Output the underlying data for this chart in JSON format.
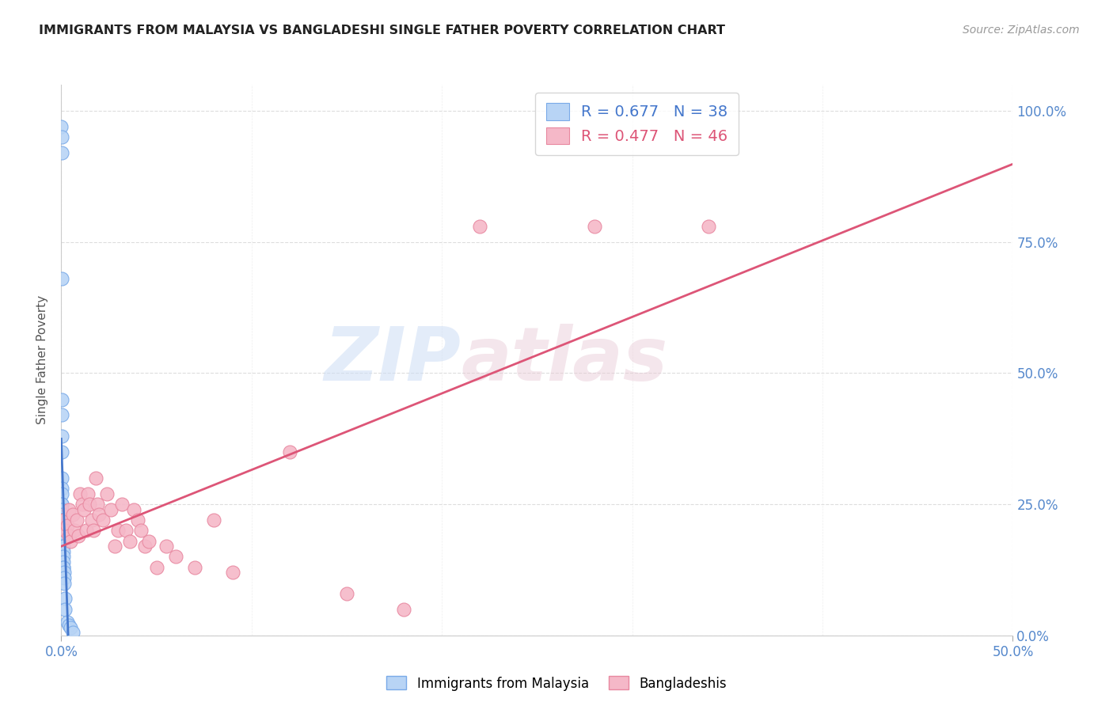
{
  "title": "IMMIGRANTS FROM MALAYSIA VS BANGLADESHI SINGLE FATHER POVERTY CORRELATION CHART",
  "source": "Source: ZipAtlas.com",
  "ylabel": "Single Father Poverty",
  "right_yticklabels": [
    "0.0%",
    "25.0%",
    "50.0%",
    "75.0%",
    "100.0%"
  ],
  "right_yticks": [
    0.0,
    0.25,
    0.5,
    0.75,
    1.0
  ],
  "watermark_text": "ZIP",
  "watermark_text2": "atlas",
  "legend_entry1": "R = 0.677   N = 38",
  "legend_entry2": "R = 0.477   N = 46",
  "legend_label1": "Immigrants from Malaysia",
  "legend_label2": "Bangladeshis",
  "color_blue": "#b8d4f5",
  "color_pink": "#f5b8c8",
  "color_blue_line": "#4477cc",
  "color_pink_line": "#dd5577",
  "blue_scatter_x": [
    0.0,
    0.0001,
    0.0001,
    0.0001,
    0.0001,
    0.0002,
    0.0002,
    0.0002,
    0.0002,
    0.0003,
    0.0003,
    0.0003,
    0.0004,
    0.0004,
    0.0005,
    0.0005,
    0.0006,
    0.0006,
    0.0007,
    0.0008,
    0.0008,
    0.0009,
    0.0009,
    0.001,
    0.001,
    0.001,
    0.0011,
    0.0012,
    0.0013,
    0.0014,
    0.0015,
    0.0016,
    0.002,
    0.002,
    0.003,
    0.004,
    0.005,
    0.006
  ],
  "blue_scatter_y": [
    0.97,
    0.95,
    0.92,
    0.68,
    0.45,
    0.42,
    0.38,
    0.35,
    0.3,
    0.28,
    0.27,
    0.25,
    0.25,
    0.24,
    0.23,
    0.22,
    0.22,
    0.21,
    0.2,
    0.19,
    0.18,
    0.18,
    0.17,
    0.17,
    0.16,
    0.15,
    0.14,
    0.13,
    0.13,
    0.12,
    0.11,
    0.1,
    0.07,
    0.05,
    0.025,
    0.02,
    0.015,
    0.005
  ],
  "pink_scatter_x": [
    0.001,
    0.002,
    0.003,
    0.004,
    0.004,
    0.005,
    0.006,
    0.007,
    0.008,
    0.009,
    0.01,
    0.011,
    0.012,
    0.013,
    0.014,
    0.015,
    0.016,
    0.017,
    0.018,
    0.019,
    0.02,
    0.022,
    0.024,
    0.026,
    0.028,
    0.03,
    0.032,
    0.034,
    0.036,
    0.038,
    0.04,
    0.042,
    0.044,
    0.046,
    0.05,
    0.055,
    0.06,
    0.07,
    0.08,
    0.09,
    0.12,
    0.15,
    0.18,
    0.22,
    0.28,
    0.34
  ],
  "pink_scatter_y": [
    0.22,
    0.2,
    0.21,
    0.19,
    0.24,
    0.18,
    0.23,
    0.2,
    0.22,
    0.19,
    0.27,
    0.25,
    0.24,
    0.2,
    0.27,
    0.25,
    0.22,
    0.2,
    0.3,
    0.25,
    0.23,
    0.22,
    0.27,
    0.24,
    0.17,
    0.2,
    0.25,
    0.2,
    0.18,
    0.24,
    0.22,
    0.2,
    0.17,
    0.18,
    0.13,
    0.17,
    0.15,
    0.13,
    0.22,
    0.12,
    0.35,
    0.08,
    0.05,
    0.78,
    0.78,
    0.78
  ],
  "xlim": [
    0.0,
    0.5
  ],
  "ylim": [
    0.0,
    1.05
  ],
  "xtick_positions": [
    0.0,
    0.5
  ],
  "xtick_labels": [
    "0.0%",
    "50.0%"
  ]
}
